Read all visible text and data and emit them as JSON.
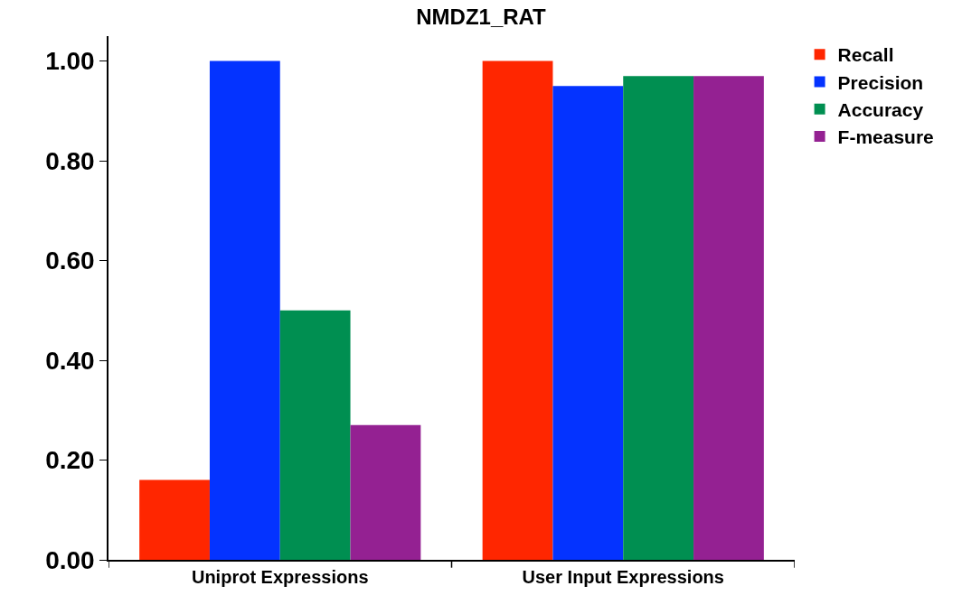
{
  "chart_data": {
    "type": "bar",
    "title": "NMDZ1_RAT",
    "categories": [
      "Uniprot Expressions",
      "User Input Expressions"
    ],
    "series": [
      {
        "name": "Recall",
        "color": "#ff2600",
        "values": [
          0.16,
          1.0
        ]
      },
      {
        "name": "Precision",
        "color": "#0433ff",
        "values": [
          1.0,
          0.95
        ]
      },
      {
        "name": "Accuracy",
        "color": "#008f51",
        "values": [
          0.5,
          0.97
        ]
      },
      {
        "name": "F-measure",
        "color": "#942192",
        "values": [
          0.27,
          0.97
        ]
      }
    ],
    "ylim": [
      0,
      1.05
    ],
    "yticks": [
      {
        "value": 0,
        "label": "0.00"
      },
      {
        "value": 0.2,
        "label": "0.20"
      },
      {
        "value": 0.4,
        "label": "0.40"
      },
      {
        "value": 0.6,
        "label": "0.60"
      },
      {
        "value": 0.8,
        "label": "0.80"
      },
      {
        "value": 1.0,
        "label": "1.00"
      }
    ],
    "legend": "top right"
  }
}
